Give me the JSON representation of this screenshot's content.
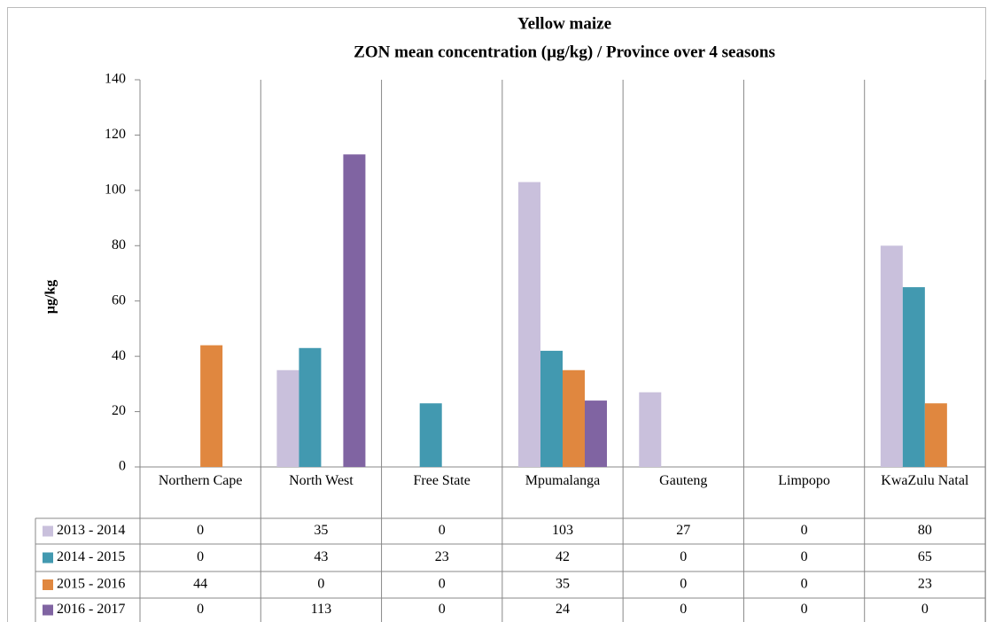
{
  "chart_data": {
    "type": "bar",
    "title": "Yellow  maize",
    "subtitle": "ZON  mean concentration (µg/kg) / Province over 4  seasons",
    "y_label": "µg/kg",
    "categories": [
      "Northern Cape",
      "North West",
      "Free State",
      "Mpumalanga",
      "Gauteng",
      "Limpopo",
      "KwaZulu Natal"
    ],
    "series": [
      {
        "name": "2013 - 2014",
        "color": "#c9c0dc",
        "values": [
          0,
          35,
          0,
          103,
          27,
          0,
          80
        ]
      },
      {
        "name": "2014 - 2015",
        "color": "#4299b0",
        "values": [
          0,
          43,
          23,
          42,
          0,
          0,
          65
        ]
      },
      {
        "name": "2015 - 2016",
        "color": "#e0873f",
        "values": [
          44,
          0,
          0,
          35,
          0,
          0,
          23
        ]
      },
      {
        "name": "2016 - 2017",
        "color": "#8064a2",
        "values": [
          0,
          113,
          0,
          24,
          0,
          0,
          0
        ]
      }
    ],
    "ylim": [
      0,
      140
    ],
    "yticks": [
      0,
      20,
      40,
      60,
      80,
      100,
      120,
      140
    ],
    "grid": false
  }
}
